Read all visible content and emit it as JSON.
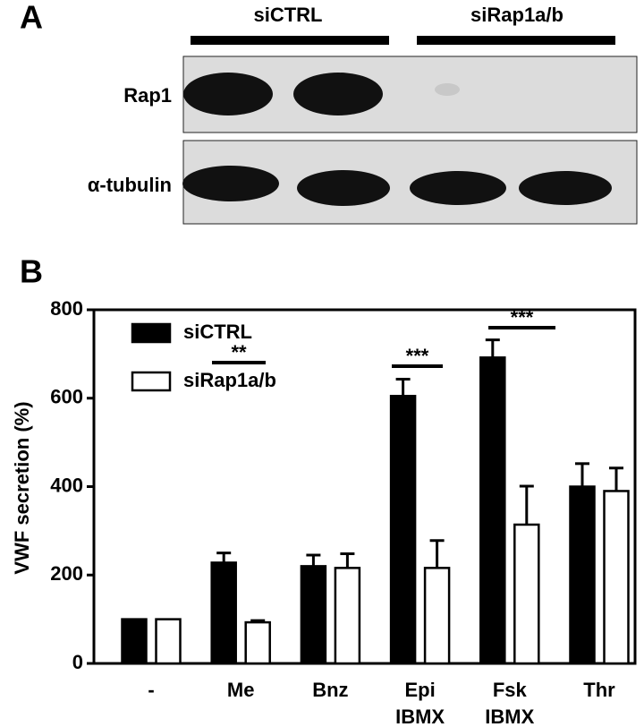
{
  "panel_a": {
    "label": "A",
    "groups": [
      "siCTRL",
      "siRap1a/b"
    ],
    "rows": [
      "Rap1",
      "α-tubulin"
    ]
  },
  "panel_b_label": "B",
  "chart_data": {
    "type": "bar",
    "ylabel": "VWF secretion (%)",
    "categories": [
      "-",
      "Me",
      "Bnz",
      "Epi IBMX",
      "Fsk IBMX",
      "Thr"
    ],
    "series": [
      {
        "name": "siCTRL",
        "color": "#000000",
        "values": [
          100,
          228,
          220,
          605,
          692,
          400
        ],
        "errors": [
          0,
          22,
          25,
          38,
          40,
          52
        ]
      },
      {
        "name": "siRap1a/b",
        "color": "#ffffff",
        "values": [
          100,
          93,
          216,
          216,
          314,
          390
        ],
        "errors": [
          0,
          4,
          32,
          62,
          87,
          52
        ]
      }
    ],
    "annotations": [
      "**",
      "***",
      "***"
    ],
    "ylim": [
      0,
      800
    ],
    "yticks": [
      0,
      200,
      400,
      600,
      800
    ]
  }
}
